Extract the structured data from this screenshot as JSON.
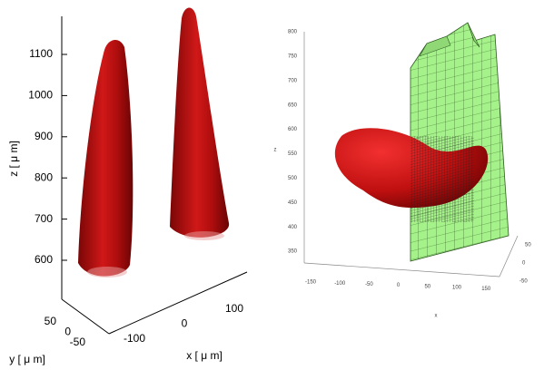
{
  "left_panel": {
    "z_label": "z [ μ m]",
    "z_ticks": [
      "1100",
      "1000",
      "900",
      "800",
      "700",
      "600"
    ],
    "y_label": "y [ μ m]",
    "y_ticks": [
      "50",
      "0",
      "-50"
    ],
    "x_label": "x [ μ m]",
    "x_ticks": [
      "-100",
      "0",
      "100"
    ]
  },
  "right_panel": {
    "z_label": "z",
    "z_ticks": [
      "800",
      "750",
      "700",
      "650",
      "600",
      "550",
      "500",
      "450",
      "400",
      "350"
    ],
    "x_label": "x",
    "x_ticks": [
      "-150",
      "-100",
      "-50",
      "0",
      "50",
      "100",
      "150"
    ],
    "y_ticks": [
      "50",
      "0",
      "-50"
    ]
  }
}
